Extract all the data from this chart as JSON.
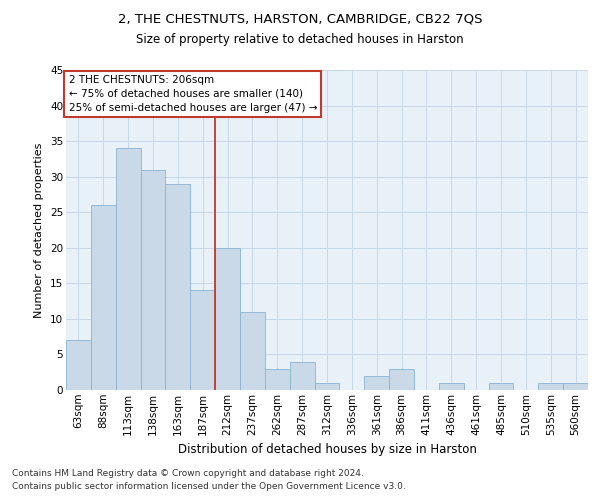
{
  "title1": "2, THE CHESTNUTS, HARSTON, CAMBRIDGE, CB22 7QS",
  "title2": "Size of property relative to detached houses in Harston",
  "xlabel": "Distribution of detached houses by size in Harston",
  "ylabel": "Number of detached properties",
  "categories": [
    "63sqm",
    "88sqm",
    "113sqm",
    "138sqm",
    "163sqm",
    "187sqm",
    "212sqm",
    "237sqm",
    "262sqm",
    "287sqm",
    "312sqm",
    "336sqm",
    "361sqm",
    "386sqm",
    "411sqm",
    "436sqm",
    "461sqm",
    "485sqm",
    "510sqm",
    "535sqm",
    "560sqm"
  ],
  "values": [
    7,
    26,
    34,
    31,
    29,
    14,
    20,
    11,
    3,
    4,
    1,
    0,
    2,
    3,
    0,
    1,
    0,
    1,
    0,
    1,
    1
  ],
  "bar_color": "#c9d9e8",
  "bar_edge_color": "#8ab4d4",
  "grid_color": "#c8d8e8",
  "background_color": "#e8f0f8",
  "vline_x_index": 6,
  "vline_color": "#c0392b",
  "annotation_text": "2 THE CHESTNUTS: 206sqm\n← 75% of detached houses are smaller (140)\n25% of semi-detached houses are larger (47) →",
  "annotation_box_color": "#ffffff",
  "annotation_box_edge": "#c0392b",
  "ylim": [
    0,
    45
  ],
  "yticks": [
    0,
    5,
    10,
    15,
    20,
    25,
    30,
    35,
    40,
    45
  ],
  "footer1": "Contains HM Land Registry data © Crown copyright and database right 2024.",
  "footer2": "Contains public sector information licensed under the Open Government Licence v3.0.",
  "title1_fontsize": 9.5,
  "title2_fontsize": 8.5,
  "xlabel_fontsize": 8.5,
  "ylabel_fontsize": 8,
  "tick_fontsize": 7.5,
  "footer_fontsize": 6.5,
  "annotation_fontsize": 7.5
}
